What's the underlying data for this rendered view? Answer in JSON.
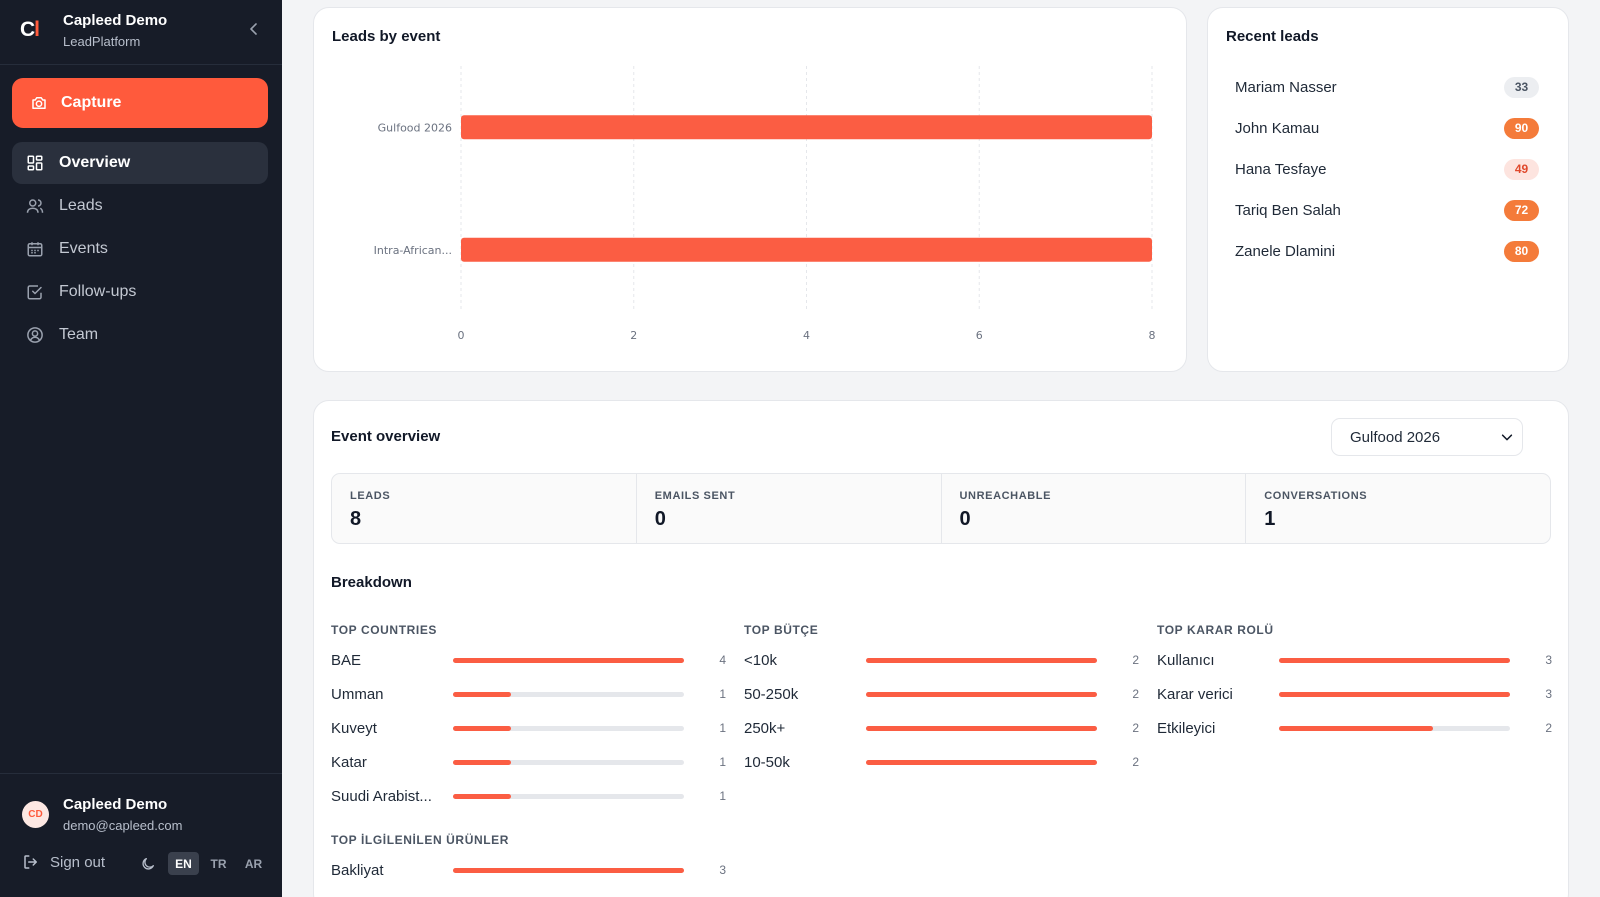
{
  "app": {
    "logo_c": "C",
    "logo_l": "l",
    "name": "Capleed Demo",
    "sub": "LeadPlatform"
  },
  "sidebar": {
    "capture_label": "Capture",
    "items": [
      {
        "label": "Overview",
        "icon": "grid-icon",
        "active": true
      },
      {
        "label": "Leads",
        "icon": "users-icon"
      },
      {
        "label": "Events",
        "icon": "calendar-icon"
      },
      {
        "label": "Follow-ups",
        "icon": "check-square-icon"
      },
      {
        "label": "Team",
        "icon": "user-circle-icon"
      }
    ]
  },
  "user": {
    "initials": "CD",
    "name": "Capleed Demo",
    "email": "demo@capleed.com",
    "signout_label": "Sign out",
    "languages": [
      "EN",
      "TR",
      "AR"
    ],
    "active_language": "EN"
  },
  "leads_by_event": {
    "title": "Leads by event"
  },
  "chart_data": {
    "type": "bar",
    "orientation": "horizontal",
    "categories": [
      "Gulfood 2026",
      "Intra-African..."
    ],
    "values": [
      8,
      8
    ],
    "xlim": [
      0,
      8
    ],
    "xticks": [
      0,
      2,
      4,
      6,
      8
    ],
    "grid": true,
    "color": "#fb5d43"
  },
  "recent_leads": {
    "title": "Recent leads",
    "items": [
      {
        "name": "Mariam Nasser",
        "score": "33",
        "tone": "gray"
      },
      {
        "name": "John Kamau",
        "score": "90",
        "tone": "hot"
      },
      {
        "name": "Hana Tesfaye",
        "score": "49",
        "tone": "warm"
      },
      {
        "name": "Tariq Ben Salah",
        "score": "72",
        "tone": "hot"
      },
      {
        "name": "Zanele Dlamini",
        "score": "80",
        "tone": "hot"
      }
    ]
  },
  "event_overview": {
    "title": "Event overview",
    "selected_event": "Gulfood 2026",
    "stats": [
      {
        "label": "LEADS",
        "value": "8"
      },
      {
        "label": "EMAILS SENT",
        "value": "0"
      },
      {
        "label": "UNREACHABLE",
        "value": "0"
      },
      {
        "label": "CONVERSATIONS",
        "value": "1"
      }
    ],
    "breakdown_title": "Breakdown",
    "breakdown": [
      {
        "heading": "TOP COUNTRIES",
        "max": 4,
        "rows": [
          {
            "label": "BAE",
            "count": 4
          },
          {
            "label": "Umman",
            "count": 1
          },
          {
            "label": "Kuveyt",
            "count": 1
          },
          {
            "label": "Katar",
            "count": 1
          },
          {
            "label": "Suudi Arabist...",
            "count": 1
          }
        ]
      },
      {
        "heading": "TOP BÜTÇE",
        "max": 2,
        "rows": [
          {
            "label": "<10k",
            "count": 2
          },
          {
            "label": "50-250k",
            "count": 2
          },
          {
            "label": "250k+",
            "count": 2
          },
          {
            "label": "10-50k",
            "count": 2
          }
        ]
      },
      {
        "heading": "TOP KARAR ROLÜ",
        "max": 3,
        "rows": [
          {
            "label": "Kullanıcı",
            "count": 3
          },
          {
            "label": "Karar verici",
            "count": 3
          },
          {
            "label": "Etkileyici",
            "count": 2
          }
        ]
      },
      {
        "heading": "TOP İLGİLENİLEN ÜRÜNLER",
        "max": 3,
        "rows": [
          {
            "label": "Bakliyat",
            "count": 3
          }
        ]
      }
    ]
  }
}
